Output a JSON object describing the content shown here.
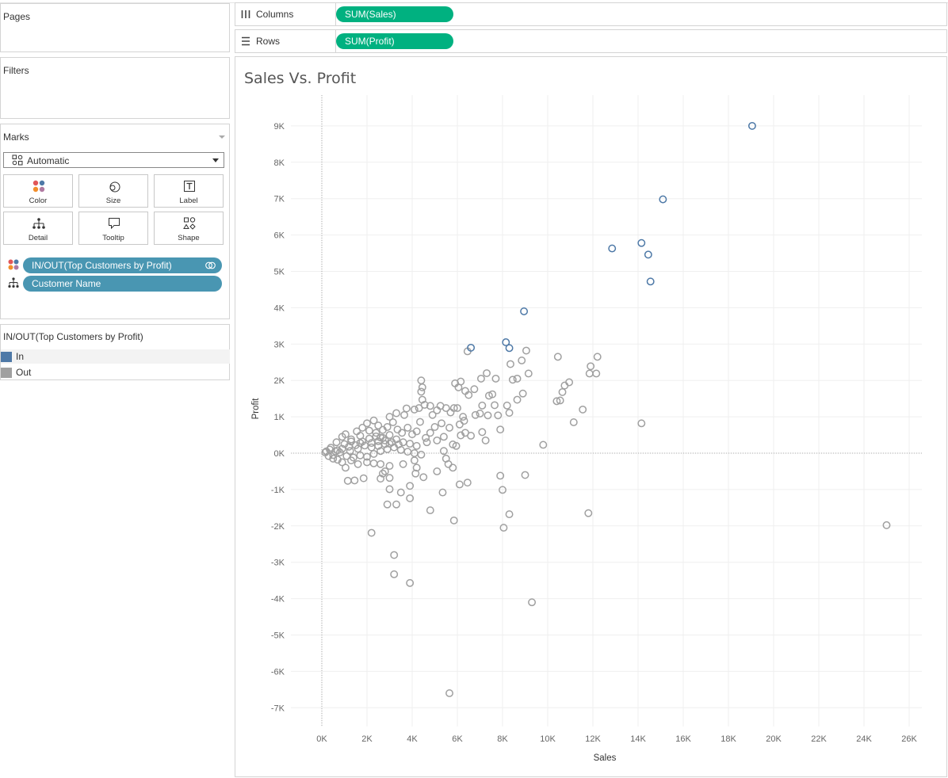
{
  "sidebar": {
    "pages_label": "Pages",
    "filters_label": "Filters",
    "marks": {
      "label": "Marks",
      "mark_type": "Automatic",
      "buttons": [
        "Color",
        "Size",
        "Label",
        "Detail",
        "Tooltip",
        "Shape"
      ],
      "fields": [
        {
          "icon": "color-icon",
          "name": "IN/OUT(Top Customers by Profit)"
        },
        {
          "icon": "detail-icon",
          "name": "Customer Name"
        }
      ]
    },
    "legend": {
      "title": "IN/OUT(Top Customers by Profit)",
      "items": [
        {
          "label": "In",
          "color": "#4e79a7"
        },
        {
          "label": "Out",
          "color": "#a0a0a0"
        }
      ]
    }
  },
  "shelves": {
    "columns_label": "Columns",
    "columns_pill": "SUM(Sales)",
    "rows_label": "Rows",
    "rows_pill": "SUM(Profit)"
  },
  "colors": {
    "in": "#4e79a7",
    "out": "#a0a0a0",
    "pill_green": "#00b180",
    "pill_blue": "#4996b2"
  },
  "chart_data": {
    "type": "scatter",
    "title": "Sales Vs. Profit",
    "xlabel": "Sales",
    "ylabel": "Profit",
    "xlim": [
      0,
      26000
    ],
    "ylim": [
      -7000,
      9000
    ],
    "x_ticks": [
      "0K",
      "2K",
      "4K",
      "6K",
      "8K",
      "10K",
      "12K",
      "14K",
      "16K",
      "18K",
      "20K",
      "22K",
      "24K",
      "26K"
    ],
    "y_ticks": [
      "9K",
      "8K",
      "7K",
      "6K",
      "5K",
      "4K",
      "3K",
      "2K",
      "1K",
      "0K",
      "-1K",
      "-2K",
      "-3K",
      "-4K",
      "-5K",
      "-6K",
      "-7K"
    ],
    "grid": true,
    "series": [
      {
        "name": "In",
        "color": "#4e79a7",
        "points": [
          [
            19050,
            9000
          ],
          [
            15100,
            6980
          ],
          [
            12850,
            5630
          ],
          [
            14150,
            5780
          ],
          [
            14450,
            5460
          ],
          [
            14550,
            4720
          ],
          [
            8950,
            3900
          ],
          [
            8150,
            3050
          ],
          [
            8300,
            2890
          ],
          [
            6600,
            2900
          ]
        ]
      },
      {
        "name": "Out",
        "color": "#a0a0a0",
        "points": [
          [
            25000,
            -1980
          ],
          [
            9300,
            -4100
          ],
          [
            5650,
            -6600
          ],
          [
            3900,
            -3570
          ],
          [
            3200,
            -3330
          ],
          [
            3200,
            -2800
          ],
          [
            2200,
            -2190
          ],
          [
            5850,
            -1850
          ],
          [
            8050,
            -2050
          ],
          [
            8300,
            -1680
          ],
          [
            11800,
            -1650
          ],
          [
            4800,
            -1570
          ],
          [
            3900,
            -1240
          ],
          [
            3300,
            -1410
          ],
          [
            2900,
            -1410
          ],
          [
            3500,
            -1080
          ],
          [
            3000,
            -990
          ],
          [
            5350,
            -1080
          ],
          [
            6450,
            -810
          ],
          [
            6100,
            -860
          ],
          [
            7900,
            -620
          ],
          [
            8000,
            -1010
          ],
          [
            9000,
            -600
          ],
          [
            4500,
            -660
          ],
          [
            4150,
            -560
          ],
          [
            3900,
            -900
          ],
          [
            3000,
            -680
          ],
          [
            2600,
            -700
          ],
          [
            1850,
            -690
          ],
          [
            1450,
            -750
          ],
          [
            1150,
            -760
          ],
          [
            2700,
            -560
          ],
          [
            9800,
            230
          ],
          [
            14150,
            820
          ],
          [
            11150,
            850
          ],
          [
            11550,
            1200
          ],
          [
            10400,
            1430
          ],
          [
            10550,
            1450
          ],
          [
            10650,
            1680
          ],
          [
            10750,
            1860
          ],
          [
            10950,
            1950
          ],
          [
            10450,
            2650
          ],
          [
            11850,
            2190
          ],
          [
            11900,
            2390
          ],
          [
            12150,
            2190
          ],
          [
            12200,
            2650
          ],
          [
            9050,
            2820
          ],
          [
            9150,
            2190
          ],
          [
            8850,
            2550
          ],
          [
            8650,
            2050
          ],
          [
            8450,
            2020
          ],
          [
            8900,
            1640
          ],
          [
            8650,
            1470
          ],
          [
            8350,
            2450
          ],
          [
            7700,
            2050
          ],
          [
            7300,
            2200
          ],
          [
            7050,
            2050
          ],
          [
            6450,
            2800
          ],
          [
            6750,
            1760
          ],
          [
            6500,
            1600
          ],
          [
            6350,
            1710
          ],
          [
            6150,
            1970
          ],
          [
            6050,
            1810
          ],
          [
            5900,
            1920
          ],
          [
            5850,
            1240
          ],
          [
            6000,
            1240
          ],
          [
            5700,
            1120
          ],
          [
            7400,
            1580
          ],
          [
            7550,
            1620
          ],
          [
            7650,
            1320
          ],
          [
            7800,
            1040
          ],
          [
            8200,
            1310
          ],
          [
            8300,
            1110
          ],
          [
            7350,
            1040
          ],
          [
            7000,
            1090
          ],
          [
            7100,
            1310
          ],
          [
            6800,
            1050
          ],
          [
            6250,
            1000
          ],
          [
            6100,
            790
          ],
          [
            6300,
            890
          ],
          [
            6350,
            560
          ],
          [
            6600,
            480
          ],
          [
            7100,
            580
          ],
          [
            7900,
            650
          ],
          [
            7250,
            350
          ],
          [
            6150,
            490
          ],
          [
            5650,
            700
          ],
          [
            5300,
            820
          ],
          [
            5000,
            720
          ],
          [
            4900,
            1050
          ],
          [
            5100,
            1180
          ],
          [
            5500,
            1240
          ],
          [
            5250,
            1300
          ],
          [
            4800,
            1300
          ],
          [
            4550,
            1330
          ],
          [
            4300,
            1240
          ],
          [
            4450,
            1470
          ],
          [
            4400,
            1690
          ],
          [
            4450,
            1810
          ],
          [
            4400,
            2000
          ],
          [
            4100,
            1200
          ],
          [
            3750,
            1230
          ],
          [
            3650,
            1050
          ],
          [
            3300,
            1100
          ],
          [
            3000,
            1000
          ],
          [
            5400,
            450
          ],
          [
            5800,
            240
          ],
          [
            5950,
            200
          ],
          [
            5400,
            60
          ],
          [
            5100,
            350
          ],
          [
            4650,
            300
          ],
          [
            5500,
            -150
          ],
          [
            5800,
            -400
          ],
          [
            5600,
            -300
          ],
          [
            5100,
            -500
          ],
          [
            4200,
            -400
          ],
          [
            4100,
            -200
          ],
          [
            3600,
            -300
          ],
          [
            3000,
            -350
          ],
          [
            2800,
            -500
          ],
          [
            2600,
            -300
          ],
          [
            2300,
            -280
          ],
          [
            2000,
            -250
          ],
          [
            1600,
            -300
          ],
          [
            1300,
            -200
          ],
          [
            1050,
            -400
          ],
          [
            900,
            -250
          ],
          [
            700,
            -180
          ],
          [
            500,
            -150
          ],
          [
            300,
            -80
          ],
          [
            200,
            50
          ],
          [
            150,
            20
          ],
          [
            400,
            150
          ],
          [
            650,
            300
          ],
          [
            900,
            450
          ],
          [
            1050,
            520
          ],
          [
            1300,
            380
          ],
          [
            1550,
            600
          ],
          [
            1800,
            700
          ],
          [
            2000,
            820
          ],
          [
            2300,
            900
          ],
          [
            2500,
            760
          ],
          [
            2700,
            640
          ],
          [
            2900,
            720
          ],
          [
            3150,
            850
          ],
          [
            3350,
            650
          ],
          [
            3550,
            560
          ],
          [
            3800,
            700
          ],
          [
            4000,
            520
          ],
          [
            4200,
            600
          ],
          [
            4350,
            860
          ],
          [
            4600,
            420
          ],
          [
            4800,
            560
          ],
          [
            600,
            50
          ],
          [
            900,
            120
          ],
          [
            1200,
            180
          ],
          [
            1500,
            220
          ],
          [
            1800,
            320
          ],
          [
            2100,
            400
          ],
          [
            2400,
            460
          ],
          [
            2700,
            420
          ],
          [
            3000,
            500
          ],
          [
            3300,
            380
          ],
          [
            3600,
            300
          ],
          [
            3900,
            260
          ],
          [
            4200,
            200
          ],
          [
            1100,
            -80
          ],
          [
            1400,
            -120
          ],
          [
            1700,
            -60
          ],
          [
            2000,
            -100
          ],
          [
            2300,
            -20
          ],
          [
            2600,
            60
          ],
          [
            2900,
            110
          ],
          [
            3200,
            160
          ],
          [
            3500,
            90
          ],
          [
            3800,
            40
          ],
          [
            4100,
            0
          ],
          [
            4400,
            -40
          ],
          [
            800,
            20
          ],
          [
            1000,
            250
          ],
          [
            1250,
            60
          ],
          [
            1600,
            120
          ],
          [
            1900,
            210
          ],
          [
            2200,
            280
          ],
          [
            2500,
            330
          ],
          [
            2800,
            250
          ],
          [
            3100,
            300
          ],
          [
            3400,
            240
          ],
          [
            1700,
            480
          ],
          [
            2100,
            620
          ],
          [
            2400,
            560
          ],
          [
            2600,
            430
          ],
          [
            2800,
            350
          ],
          [
            3000,
            260
          ],
          [
            2200,
            160
          ],
          [
            2500,
            200
          ],
          [
            500,
            -50
          ],
          [
            350,
            100
          ],
          [
            700,
            80
          ],
          [
            1300,
            320
          ],
          [
            1700,
            280
          ]
        ]
      }
    ]
  }
}
